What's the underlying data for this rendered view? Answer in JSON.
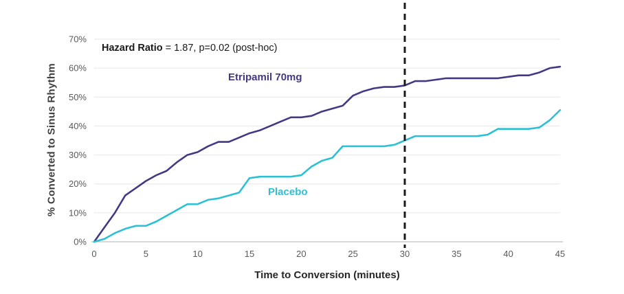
{
  "figure": {
    "background": "#ffffff"
  },
  "annotation": {
    "bold": "Hazard Ratio",
    "rest": " = 1.87, p=0.02 (post-hoc)"
  },
  "chart_data": {
    "type": "line",
    "title": "",
    "xlabel": "Time to Conversion (minutes)",
    "ylabel": "% Converted to Sinus Rhythm",
    "xlim": [
      0,
      45
    ],
    "ylim": [
      0,
      70
    ],
    "x_ticks": [
      0,
      5,
      10,
      15,
      20,
      25,
      30,
      35,
      40,
      45
    ],
    "y_ticks": [
      0,
      10,
      20,
      30,
      40,
      50,
      60,
      70
    ],
    "y_tick_suffix": "%",
    "grid": "horizontal",
    "reference_line": {
      "x": 30,
      "style": "dashed",
      "color": "#1a1a1a"
    },
    "x": [
      0,
      1,
      2,
      3,
      4,
      5,
      6,
      7,
      8,
      9,
      10,
      11,
      12,
      13,
      14,
      15,
      16,
      17,
      18,
      19,
      20,
      21,
      22,
      23,
      24,
      25,
      26,
      27,
      28,
      29,
      30,
      31,
      32,
      33,
      34,
      35,
      36,
      37,
      38,
      39,
      40,
      41,
      42,
      43,
      44,
      45
    ],
    "series": [
      {
        "name": "Etripamil 70mg",
        "color": "#453883",
        "values": [
          0,
          5,
          10,
          16,
          18.5,
          21,
          23,
          24.5,
          27.5,
          30,
          31,
          33,
          34.5,
          34.5,
          36,
          37.5,
          38.5,
          40,
          41.5,
          43,
          43,
          43.5,
          45,
          46,
          47,
          50.5,
          52,
          53,
          53.5,
          53.5,
          54,
          55.5,
          55.5,
          56,
          56.5,
          56.5,
          56.5,
          56.5,
          56.5,
          56.5,
          57,
          57.5,
          57.5,
          58.5,
          60,
          60.5
        ]
      },
      {
        "name": "Placebo",
        "color": "#2bc0d4",
        "values": [
          0,
          1,
          3,
          4.5,
          5.5,
          5.5,
          7,
          9,
          11,
          13,
          13,
          14.5,
          15,
          16,
          17,
          22,
          22.5,
          22.5,
          22.5,
          22.5,
          23,
          26,
          28,
          29,
          33,
          33,
          33,
          33,
          33,
          33.5,
          35,
          36.5,
          36.5,
          36.5,
          36.5,
          36.5,
          36.5,
          36.5,
          37,
          39,
          39,
          39,
          39,
          39.5,
          42,
          45.5
        ]
      }
    ],
    "colors": {
      "grid": "#e6e6e6",
      "axis_line": "#bfbfbf",
      "tick_label": "#595959"
    }
  },
  "series_labels": {
    "etripamil": "Etripamil 70mg",
    "placebo": "Placebo"
  }
}
